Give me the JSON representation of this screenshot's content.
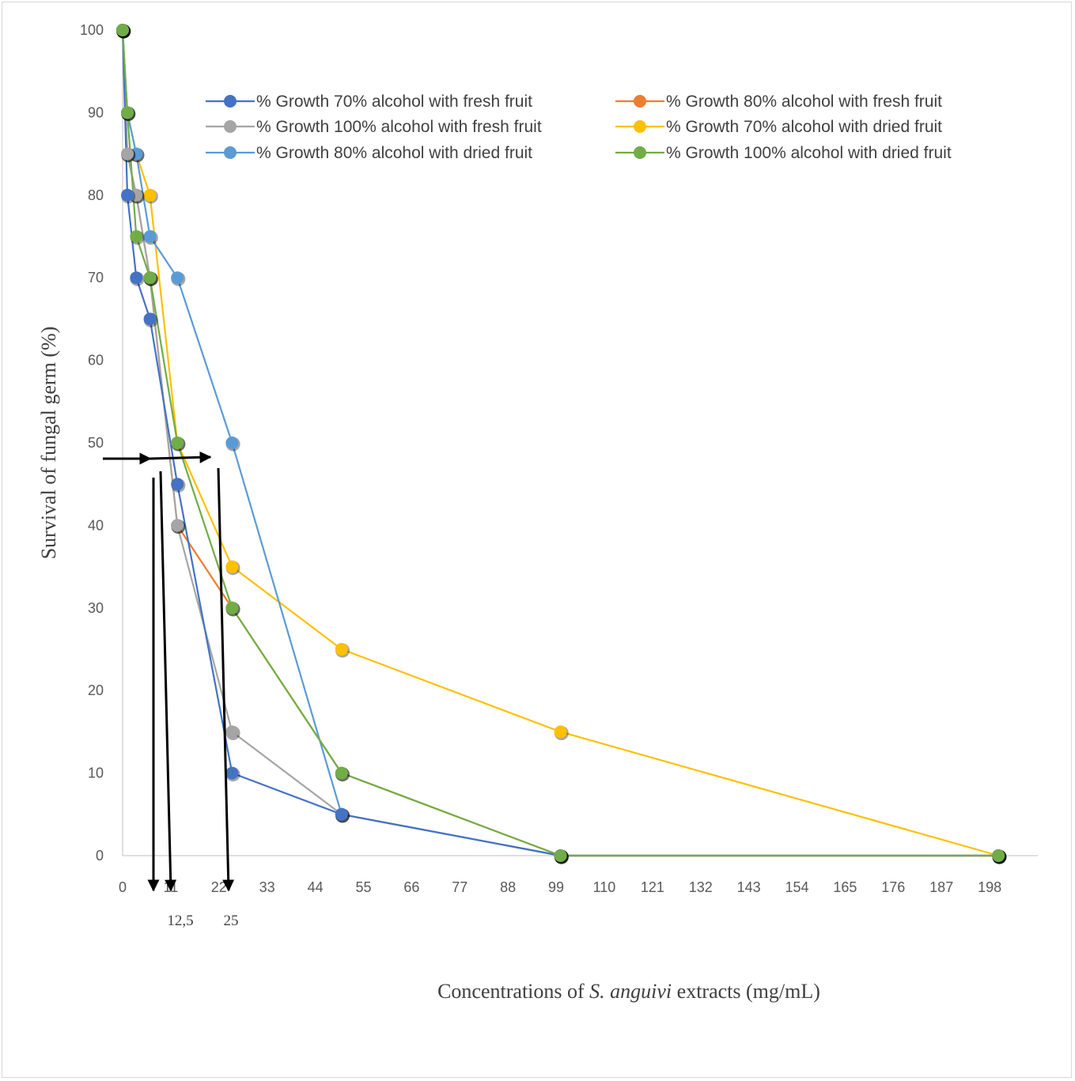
{
  "chart_data": {
    "type": "line",
    "title": "",
    "xlabel_parts": [
      "Concentrations of ",
      "S. anguivi",
      " extracts (mg/mL)"
    ],
    "ylabel": "Survival of fungal germ (%)",
    "xlim": [
      0,
      209
    ],
    "ylim": [
      0,
      100
    ],
    "x_ticks": [
      0,
      11,
      22,
      33,
      44,
      55,
      66,
      77,
      88,
      99,
      110,
      121,
      132,
      143,
      154,
      165,
      176,
      187,
      198
    ],
    "y_ticks": [
      0,
      10,
      20,
      30,
      40,
      50,
      60,
      70,
      80,
      90,
      100
    ],
    "grid": false,
    "legend_position": "top-right",
    "annotations": [
      "12,5",
      "25"
    ],
    "series": [
      {
        "name": "% Growth 70% alcohol with fresh fruit",
        "color": "#4472C4",
        "x": [
          0,
          1.09,
          3.125,
          6.25,
          12.5,
          25,
          50,
          100,
          200
        ],
        "y": [
          100,
          80,
          70,
          65,
          45,
          10,
          5,
          0,
          0
        ]
      },
      {
        "name": "% Growth 80% alcohol with fresh fruit",
        "color": "#ED7D31",
        "x": [
          0,
          1.09,
          3.125,
          6.25,
          12.5,
          25,
          50,
          100,
          200
        ],
        "y": [
          100,
          85,
          80,
          70,
          40,
          30,
          10,
          0,
          0
        ]
      },
      {
        "name": "% Growth 100% alcohol with fresh fruit",
        "color": "#A5A5A5",
        "x": [
          0,
          1.09,
          3.125,
          6.25,
          12.5,
          25,
          50,
          100,
          200
        ],
        "y": [
          100,
          85,
          80,
          70,
          40,
          15,
          5,
          0,
          0
        ]
      },
      {
        "name": "% Growth 70% alcohol with dried fruit",
        "color": "#FFC000",
        "x": [
          0,
          1.09,
          3.125,
          6.25,
          12.5,
          25,
          50,
          100,
          200
        ],
        "y": [
          100,
          90,
          85,
          80,
          50,
          35,
          25,
          15,
          0
        ]
      },
      {
        "name": "% Growth 80% alcohol with dried fruit",
        "color": "#5B9BD5",
        "x": [
          0,
          1.09,
          3.125,
          6.25,
          12.5,
          25,
          50,
          100,
          200
        ],
        "y": [
          100,
          90,
          85,
          75,
          70,
          50,
          5,
          0,
          0
        ]
      },
      {
        "name": "% Growth 100% alcohol with dried fruit",
        "color": "#70AD47",
        "x": [
          0,
          1.09,
          3.125,
          6.25,
          12.5,
          25,
          50,
          100,
          200
        ],
        "y": [
          100,
          90,
          75,
          70,
          50,
          30,
          10,
          0,
          0
        ]
      }
    ]
  }
}
